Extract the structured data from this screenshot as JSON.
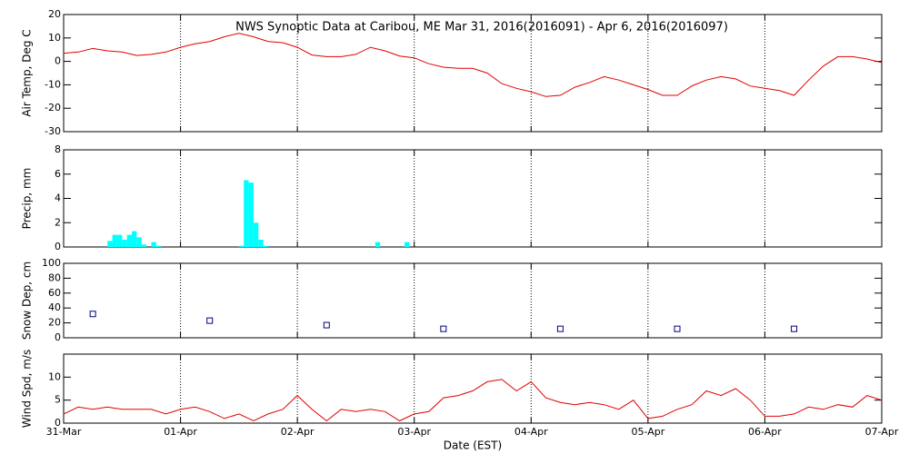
{
  "chart_data": [
    {
      "type": "line",
      "title": "NWS Synoptic Data at Caribou, ME   Mar 31, 2016(2016091) - Apr  6, 2016(2016097)",
      "ylabel": "Air Temp, Deg C",
      "color": "#e00000",
      "x": [
        0,
        3,
        6,
        9,
        12,
        15,
        18,
        21,
        24,
        27,
        30,
        33,
        36,
        39,
        42,
        45,
        48,
        51,
        54,
        57,
        60,
        63,
        66,
        69,
        72,
        75,
        78,
        81,
        84,
        87,
        90,
        93,
        96,
        99,
        102,
        105,
        108,
        111,
        114,
        117,
        120,
        123,
        126,
        129,
        132,
        135,
        138,
        141,
        144,
        147,
        150,
        153,
        156,
        159,
        162,
        165,
        168
      ],
      "values": [
        3.5,
        4,
        5.5,
        4.5,
        4,
        2.5,
        3,
        4,
        6,
        7.5,
        8.5,
        10.5,
        12,
        10.5,
        8.5,
        8,
        6,
        2.7,
        2,
        2,
        3,
        6,
        4.5,
        2.3,
        1.5,
        -1,
        -2.5,
        -3,
        -3,
        -5,
        -9.5,
        -11.5,
        -13,
        -15,
        -14.5,
        -11,
        -9,
        -6.5,
        -8,
        -10,
        -12,
        -14.5,
        -14.5,
        -10.5,
        -8,
        -6.5,
        -7.5,
        -10.5,
        -11.5,
        -12.5,
        -14.5,
        -8,
        -2,
        2,
        2,
        1,
        -0.5
      ],
      "xlim": [
        0,
        168
      ],
      "xticks": [
        0,
        24,
        48,
        72,
        96,
        120,
        144,
        168
      ],
      "ylim": [
        -30,
        20
      ],
      "yticks": [
        -30,
        -20,
        -10,
        0,
        10,
        20
      ],
      "grid": true
    },
    {
      "type": "bar",
      "ylabel": "Precip, mm",
      "color": "#00ffff",
      "x": [
        9,
        10,
        11,
        12,
        13,
        14,
        15,
        16,
        18,
        19,
        36,
        37,
        38,
        39,
        40,
        41,
        64,
        70
      ],
      "values": [
        0.5,
        1,
        1,
        0.6,
        1,
        1.3,
        0.8,
        0.2,
        0.4,
        0.1,
        0.1,
        5.5,
        5.3,
        2,
        0.6,
        0.1,
        0.4,
        0.4
      ],
      "bar_width": 1,
      "xlim": [
        0,
        168
      ],
      "xticks": [
        0,
        24,
        48,
        72,
        96,
        120,
        144,
        168
      ],
      "ylim": [
        0,
        8
      ],
      "yticks": [
        0,
        2,
        4,
        6,
        8
      ],
      "grid": true
    },
    {
      "type": "scatter",
      "ylabel": "Snow Dep, cm",
      "color": "#000080",
      "x": [
        6,
        30,
        54,
        78,
        102,
        126,
        150
      ],
      "values": [
        32,
        23,
        17,
        12,
        12,
        12,
        12
      ],
      "xlim": [
        0,
        168
      ],
      "xticks": [
        0,
        24,
        48,
        72,
        96,
        120,
        144,
        168
      ],
      "ylim": [
        0,
        100
      ],
      "yticks": [
        0,
        20,
        40,
        60,
        80,
        100
      ],
      "grid": true
    },
    {
      "type": "line",
      "ylabel": "Wind Spd, m/s",
      "xlabel": "Date (EST)",
      "color": "#e00000",
      "x": [
        0,
        3,
        6,
        9,
        12,
        15,
        18,
        21,
        24,
        27,
        30,
        33,
        36,
        39,
        42,
        45,
        48,
        51,
        54,
        57,
        60,
        63,
        66,
        69,
        72,
        75,
        78,
        81,
        84,
        87,
        90,
        93,
        96,
        99,
        102,
        105,
        108,
        111,
        114,
        117,
        120,
        123,
        126,
        129,
        132,
        135,
        138,
        141,
        144,
        147,
        150,
        153,
        156,
        159,
        162,
        165,
        168
      ],
      "values": [
        2,
        3.5,
        3,
        3.5,
        3,
        3,
        3,
        2,
        3,
        3.5,
        2.5,
        1,
        2,
        0.5,
        2,
        3,
        6,
        3,
        0.5,
        3,
        2.5,
        3,
        2.5,
        0.5,
        2,
        2.5,
        5.5,
        6,
        7,
        9,
        9.5,
        7,
        9,
        5.5,
        4.5,
        4,
        4.5,
        4,
        3,
        5,
        1,
        1.5,
        3,
        4,
        7,
        6,
        7.5,
        5,
        1.5,
        1.5,
        2,
        3.5,
        3,
        4,
        3.5,
        6,
        5
      ],
      "xlim": [
        0,
        168
      ],
      "xticks": [
        {
          "value": 0,
          "label": "31-Mar"
        },
        {
          "value": 24,
          "label": "01-Apr"
        },
        {
          "value": 48,
          "label": "02-Apr"
        },
        {
          "value": 72,
          "label": "03-Apr"
        },
        {
          "value": 96,
          "label": "04-Apr"
        },
        {
          "value": 120,
          "label": "05-Apr"
        },
        {
          "value": 144,
          "label": "06-Apr"
        },
        {
          "value": 168,
          "label": "07-Apr"
        }
      ],
      "ylim": [
        0,
        15
      ],
      "yticks": [
        0,
        5,
        10
      ],
      "grid": true
    }
  ]
}
